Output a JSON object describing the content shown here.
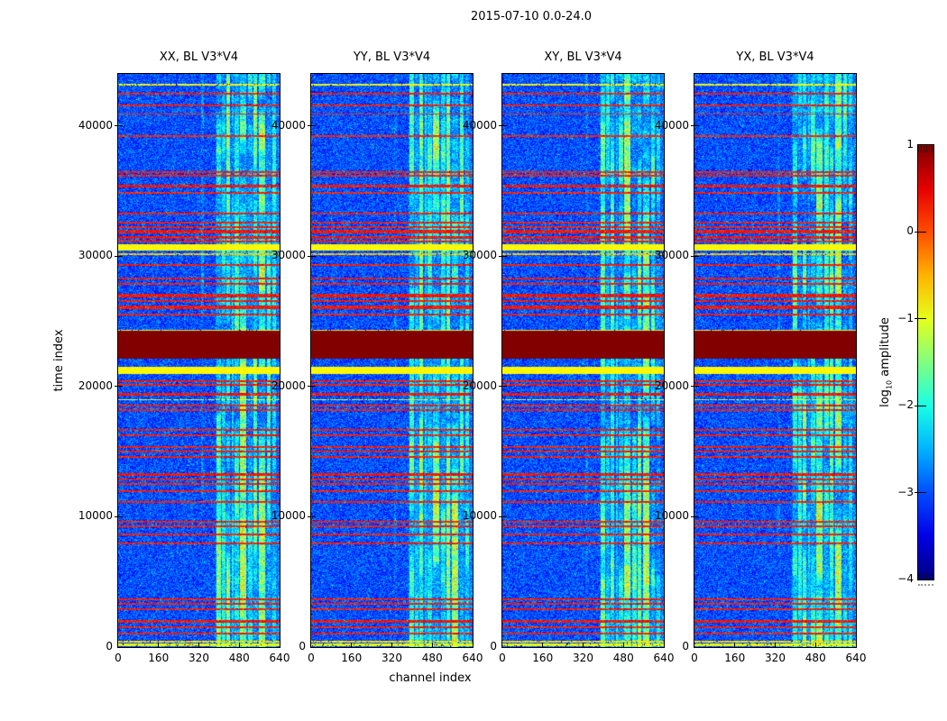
{
  "figure": {
    "title": "2015-07-10 0.0-24.0",
    "xlabel": "channel index",
    "ylabel": "time index",
    "background": "#ffffff",
    "axis_color": "#000000"
  },
  "chart_data": {
    "type": "heatmap",
    "colormap": "jet",
    "clim": [
      -4,
      1
    ],
    "xlim": [
      0,
      640
    ],
    "ylim": [
      0,
      44000
    ],
    "x_ticks": [
      0,
      160,
      320,
      480,
      640
    ],
    "y_ticks": [
      0,
      10000,
      20000,
      30000,
      40000
    ],
    "panels": [
      {
        "title": "XX, BL V3*V4"
      },
      {
        "title": "YY, BL V3*V4"
      },
      {
        "title": "XY, BL V3*V4"
      },
      {
        "title": "YX, BL V3*V4"
      }
    ],
    "colorbar": {
      "label_prefix": "log",
      "label_sub": "10",
      "label_suffix": " amplitude",
      "ticks": [
        1,
        0,
        -1,
        -2,
        -3,
        -4
      ]
    },
    "background_level": -3.45,
    "noise_amplitude": 0.9,
    "rfi_channel_stripes_format": "[channel_start, channel_end, log10_boost]",
    "rfi_channel_stripes": [
      [
        385,
        640,
        0.35
      ],
      [
        330,
        340,
        0.5
      ],
      [
        390,
        408,
        1.4
      ],
      [
        412,
        424,
        0.9
      ],
      [
        430,
        444,
        1.55
      ],
      [
        450,
        458,
        0.8
      ],
      [
        462,
        478,
        1.2
      ],
      [
        484,
        508,
        1.8
      ],
      [
        514,
        532,
        1.2
      ],
      [
        538,
        552,
        1.55
      ],
      [
        558,
        584,
        1.8
      ],
      [
        590,
        606,
        1.3
      ],
      [
        612,
        626,
        1.0
      ]
    ],
    "h_lines_format": "[time_index, log10_amplitude, thickness_px]",
    "h_lines": [
      [
        43150,
        -0.9,
        2
      ],
      [
        42450,
        0.25,
        2
      ],
      [
        41600,
        0.25,
        2
      ],
      [
        40900,
        0.2,
        1
      ],
      [
        39200,
        0.2,
        2
      ],
      [
        36450,
        0.25,
        2
      ],
      [
        36150,
        0.25,
        2
      ],
      [
        35400,
        0.3,
        3
      ],
      [
        34900,
        0.2,
        2
      ],
      [
        33300,
        0.25,
        2
      ],
      [
        32600,
        0.25,
        2
      ],
      [
        32250,
        0.25,
        2
      ],
      [
        31900,
        0.3,
        4
      ],
      [
        31450,
        0.3,
        3
      ],
      [
        31100,
        0.25,
        2
      ],
      [
        30150,
        -0.6,
        2
      ],
      [
        29300,
        0.25,
        2
      ],
      [
        28300,
        0.3,
        2
      ],
      [
        27900,
        0.25,
        2
      ],
      [
        26950,
        0.3,
        4
      ],
      [
        26550,
        0.25,
        2
      ],
      [
        26050,
        0.3,
        4
      ],
      [
        25550,
        0.25,
        2
      ],
      [
        24300,
        -0.9,
        2
      ],
      [
        20420,
        0.25,
        2
      ],
      [
        20100,
        0.25,
        2
      ],
      [
        19400,
        0.3,
        3
      ],
      [
        19000,
        -0.9,
        1
      ],
      [
        18550,
        0.25,
        2
      ],
      [
        18200,
        0.25,
        2
      ],
      [
        16700,
        0.25,
        2
      ],
      [
        16250,
        0.25,
        2
      ],
      [
        15350,
        0.25,
        2
      ],
      [
        15000,
        0.25,
        2
      ],
      [
        14600,
        0.25,
        2
      ],
      [
        13250,
        0.3,
        3
      ],
      [
        12900,
        0.25,
        2
      ],
      [
        12500,
        0.25,
        2
      ],
      [
        11950,
        0.25,
        2
      ],
      [
        11150,
        0.25,
        2
      ],
      [
        9650,
        0.25,
        2
      ],
      [
        9300,
        0.25,
        2
      ],
      [
        8650,
        0.25,
        2
      ],
      [
        7950,
        0.25,
        2
      ],
      [
        3650,
        0.25,
        2
      ],
      [
        3300,
        0.25,
        2
      ],
      [
        2900,
        0.25,
        2
      ],
      [
        1950,
        0.3,
        3
      ],
      [
        1500,
        0.25,
        2
      ],
      [
        1050,
        0.25,
        2
      ],
      [
        420,
        -0.7,
        2
      ],
      [
        150,
        -1.0,
        3
      ]
    ],
    "bands_format": "{t0, t1, v} saturated/flagged time ranges",
    "bands": [
      {
        "t0": 22150,
        "t1": 24250,
        "v": 1.0,
        "j": 0.08
      },
      {
        "t0": 30450,
        "t1": 30900,
        "v": -0.85,
        "j": 0.15
      },
      {
        "t0": 20950,
        "t1": 21500,
        "v": -0.85,
        "j": 0.15
      }
    ]
  }
}
